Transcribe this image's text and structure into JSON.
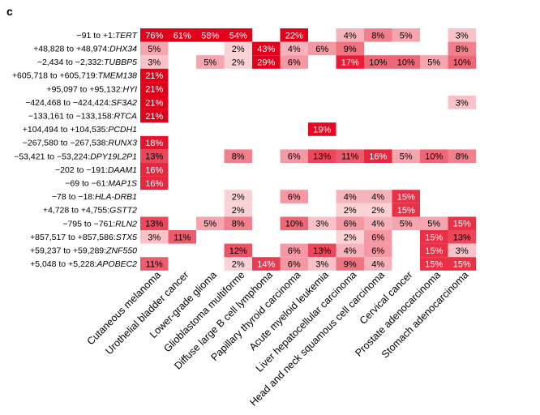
{
  "panel_label": "c",
  "chart_data": {
    "type": "heatmap",
    "color_low": "#ffffff",
    "color_high": "#e3001b",
    "columns": [
      "Cutaneous melanoma",
      "Urothelial bladder cancer",
      "Lower-grade glioma",
      "Glioblastoma multiforme",
      "Diffuse large B cell lymphoma",
      "Papillary thyroid carcinoma",
      "Acute myeloid leukemia",
      "Liver hepatocellular carcinoma",
      "Head and neck squamous cell carcinoma",
      "Cervical cancer",
      "Prostate adenocarcinoma",
      "Stomach adenocarcinoma"
    ],
    "rows": [
      {
        "position": "−91 to +1:",
        "gene": "TERT",
        "values": [
          76,
          61,
          58,
          54,
          null,
          22,
          null,
          4,
          8,
          5,
          null,
          3
        ]
      },
      {
        "position": "+48,828 to +48,974:",
        "gene": "DHX34",
        "values": [
          5,
          null,
          null,
          2,
          43,
          4,
          6,
          9,
          null,
          null,
          null,
          8
        ]
      },
      {
        "position": "−2,434 to −2,332:",
        "gene": "TUBBP5",
        "values": [
          3,
          null,
          5,
          2,
          29,
          6,
          null,
          17,
          10,
          10,
          5,
          10
        ]
      },
      {
        "position": "+605,718 to +605,719:",
        "gene": "TMEM138",
        "values": [
          21,
          null,
          null,
          null,
          null,
          null,
          null,
          null,
          null,
          null,
          null,
          null
        ]
      },
      {
        "position": "+95,097 to +95,132:",
        "gene": "HYI",
        "values": [
          21,
          null,
          null,
          null,
          null,
          null,
          null,
          null,
          null,
          null,
          null,
          null
        ]
      },
      {
        "position": "−424,468 to −424,424:",
        "gene": "SF3A2",
        "values": [
          21,
          null,
          null,
          null,
          null,
          null,
          null,
          null,
          null,
          null,
          null,
          3
        ]
      },
      {
        "position": "−133,161 to −133,158:",
        "gene": "RTCA",
        "values": [
          21,
          null,
          null,
          null,
          null,
          null,
          null,
          null,
          null,
          null,
          null,
          null
        ]
      },
      {
        "position": "+104,494 to +104,535:",
        "gene": "PCDH1",
        "values": [
          null,
          null,
          null,
          null,
          null,
          null,
          19,
          null,
          null,
          null,
          null,
          null
        ]
      },
      {
        "position": "−267,580 to −267,538:",
        "gene": "RUNX3",
        "values": [
          18,
          null,
          null,
          null,
          null,
          null,
          null,
          null,
          null,
          null,
          null,
          null
        ]
      },
      {
        "position": "−53,421 to −53,224:",
        "gene": "DPY19L2P1",
        "values": [
          13,
          null,
          null,
          8,
          null,
          6,
          13,
          11,
          16,
          5,
          10,
          8
        ]
      },
      {
        "position": "−202 to −191:",
        "gene": "DAAM1",
        "values": [
          16,
          null,
          null,
          null,
          null,
          null,
          null,
          null,
          null,
          null,
          null,
          null
        ]
      },
      {
        "position": "−69 to −61:",
        "gene": "MAP1S",
        "values": [
          16,
          null,
          null,
          null,
          null,
          null,
          null,
          null,
          null,
          null,
          null,
          null
        ]
      },
      {
        "position": "−78 to −18:",
        "gene": "HLA-DRB1",
        "values": [
          null,
          null,
          null,
          2,
          null,
          6,
          null,
          4,
          4,
          15,
          null,
          null
        ]
      },
      {
        "position": "+4,728 to +4,755:",
        "gene": "GSTT2",
        "values": [
          null,
          null,
          null,
          2,
          null,
          null,
          null,
          2,
          2,
          15,
          null,
          null
        ]
      },
      {
        "position": "−795 to −761:",
        "gene": "RLN2",
        "values": [
          13,
          null,
          5,
          8,
          null,
          10,
          3,
          6,
          4,
          5,
          5,
          15
        ]
      },
      {
        "position": "+857,517 to +857,586:",
        "gene": "STX5",
        "values": [
          3,
          11,
          null,
          null,
          null,
          null,
          null,
          2,
          6,
          null,
          15,
          13
        ]
      },
      {
        "position": "+59,237 to +59,289:",
        "gene": "ZNF550",
        "values": [
          null,
          null,
          null,
          12,
          null,
          6,
          13,
          4,
          6,
          null,
          15,
          3
        ]
      },
      {
        "position": "+5,048 to +5,228:",
        "gene": "APOBEC2",
        "values": [
          11,
          null,
          null,
          2,
          14,
          6,
          3,
          9,
          4,
          null,
          15,
          15
        ]
      }
    ]
  }
}
